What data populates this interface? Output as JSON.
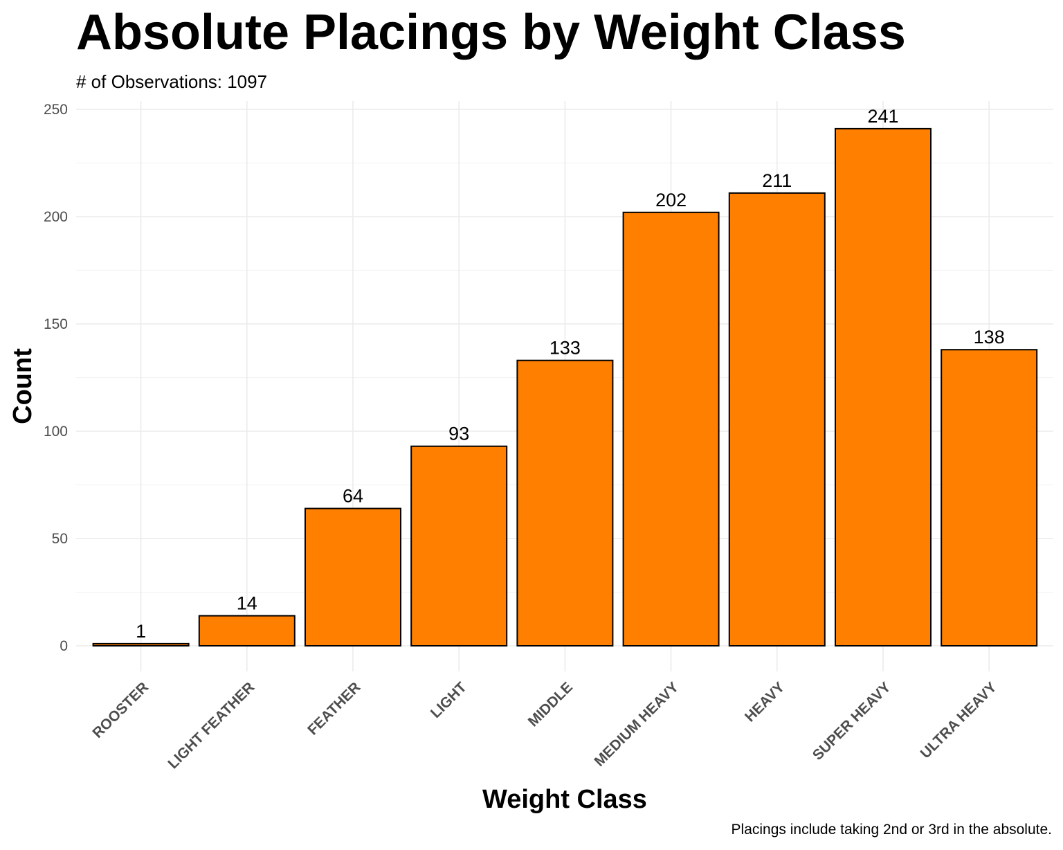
{
  "chart_data": {
    "type": "bar",
    "title": "Absolute Placings by Weight Class",
    "subtitle": "# of Observations: 1097",
    "caption": "Placings include taking 2nd or 3rd in the absolute.",
    "xlabel": "Weight Class",
    "ylabel": "Count",
    "categories": [
      "ROOSTER",
      "LIGHT FEATHER",
      "FEATHER",
      "LIGHT",
      "MIDDLE",
      "MEDIUM HEAVY",
      "HEAVY",
      "SUPER HEAVY",
      "ULTRA HEAVY"
    ],
    "values": [
      1,
      14,
      64,
      93,
      133,
      202,
      211,
      241,
      138
    ],
    "ylim": [
      0,
      250
    ],
    "yticks": [
      0,
      50,
      100,
      150,
      200,
      250
    ],
    "bar_color": "#FF7F00",
    "bar_outline": "#000000",
    "grid": true,
    "legend": "none"
  }
}
